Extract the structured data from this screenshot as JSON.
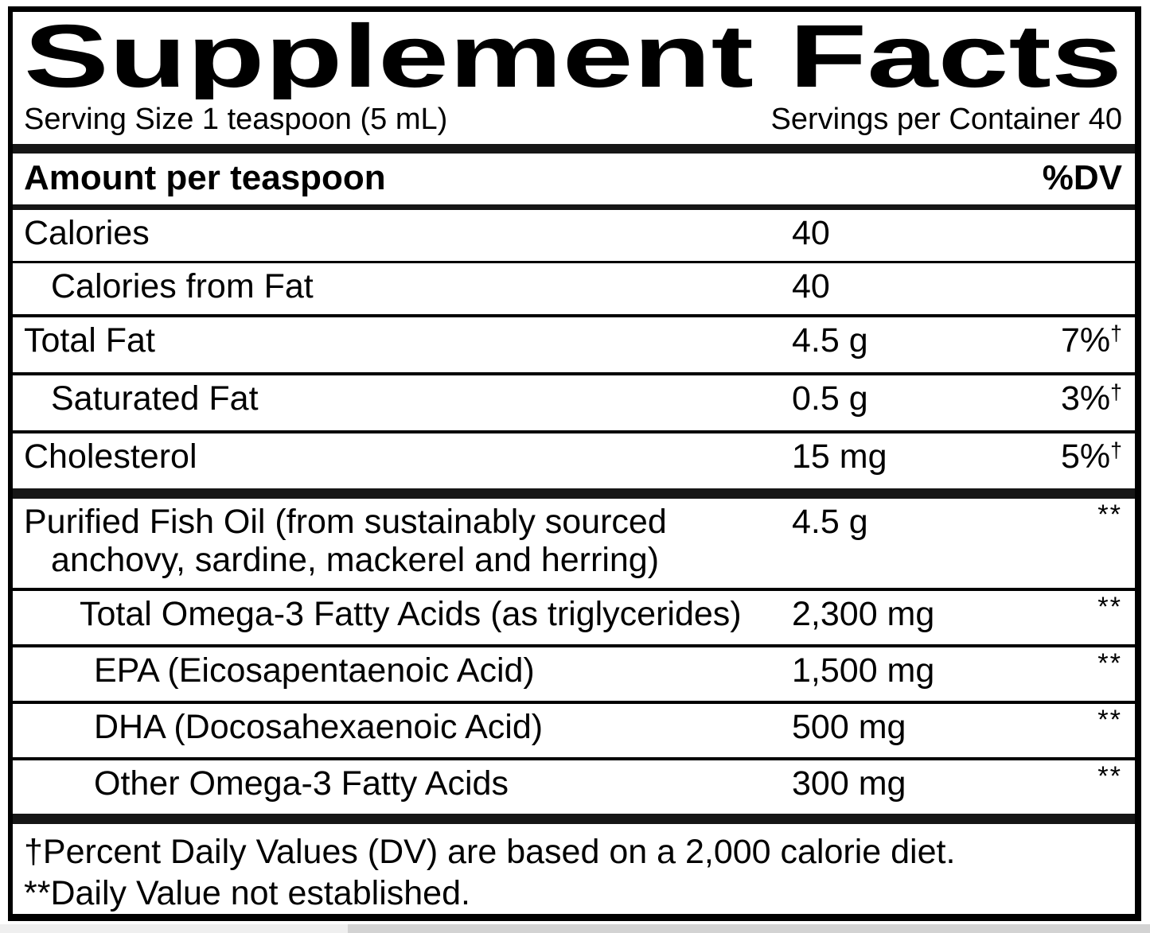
{
  "title": "Supplement Facts",
  "serving": {
    "size_label": "Serving Size 1 teaspoon (5 mL)",
    "per_container_label": "Servings per Container 40"
  },
  "header": {
    "amount_label": "Amount per teaspoon",
    "dv_label": "%DV"
  },
  "rows": [
    {
      "name": "Calories",
      "amount": "40",
      "dv": "",
      "dv_sup": ""
    },
    {
      "name": "Calories from Fat",
      "amount": "40",
      "dv": "",
      "dv_sup": ""
    },
    {
      "name": "Total Fat",
      "amount": "4.5 g",
      "dv": "7%",
      "dv_sup": "†"
    },
    {
      "name": "Saturated Fat",
      "amount": "0.5 g",
      "dv": "3%",
      "dv_sup": "†"
    },
    {
      "name": "Cholesterol",
      "amount": "15 mg",
      "dv": "5%",
      "dv_sup": "†"
    },
    {
      "name": "Purified Fish Oil (from sustainably sourced",
      "name2": "anchovy, sardine, mackerel and herring)",
      "amount": "4.5 g",
      "dv": "",
      "dv_sup": "**"
    },
    {
      "name": "Total Omega-3 Fatty Acids (as triglycerides)",
      "amount": "2,300 mg",
      "dv": "",
      "dv_sup": "**"
    },
    {
      "name": "EPA (Eicosapentaenoic Acid)",
      "amount": "1,500 mg",
      "dv": "",
      "dv_sup": "**"
    },
    {
      "name": "DHA (Docosahexaenoic Acid)",
      "amount": "500 mg",
      "dv": "",
      "dv_sup": "**"
    },
    {
      "name": "Other Omega-3 Fatty Acids",
      "amount": "300 mg",
      "dv": "",
      "dv_sup": "**"
    }
  ],
  "footnotes": {
    "line1": "†Percent Daily Values (DV) are based on a 2,000 calorie diet.",
    "line2": "**Daily Value not established."
  },
  "colors": {
    "text": "#000000",
    "background": "#ffffff",
    "rule": "#000000",
    "scrollbar_track": "#efefef",
    "scrollbar_thumb": "#d3d3d3"
  }
}
